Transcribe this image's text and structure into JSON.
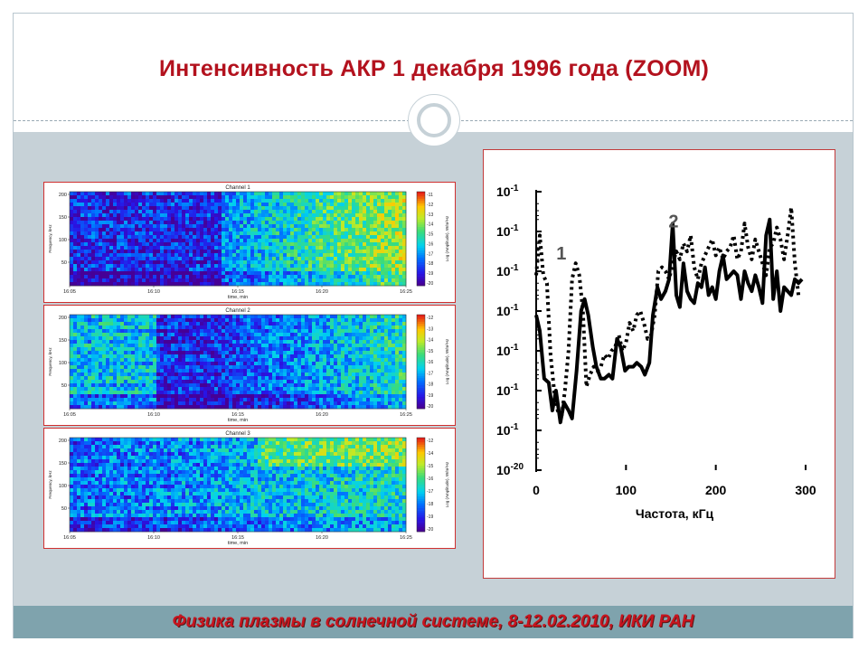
{
  "slide": {
    "title": "Интенсивность АКР 1 декабря 1996 года (ZOOM)",
    "footer": "Физика плазмы в солнечной системе, 8-12.02.2010, ИКИ РАН"
  },
  "spectrograms": [
    {
      "channel_title": "Channel 1",
      "y_label": "Frequency, kHz",
      "y_ticks": [
        "200",
        "150",
        "100",
        "50"
      ],
      "x_label": "time, min",
      "x_ticks": [
        "16:05",
        "16:10",
        "16:15",
        "16:20",
        "16:25"
      ],
      "colorbar_label": "Log (Amplitude), W/m²Hz",
      "colorbar_ticks": [
        "-11",
        "-12",
        "-13",
        "-14",
        "-15",
        "-16",
        "-17",
        "-18",
        "-19",
        "-20"
      ]
    },
    {
      "channel_title": "Channel 2",
      "y_label": "Frequency, kHz",
      "y_ticks": [
        "200",
        "150",
        "100",
        "50"
      ],
      "x_label": "time, min",
      "x_ticks": [
        "16:05",
        "16:10",
        "16:15",
        "16:20",
        "16:25"
      ],
      "colorbar_label": "Log (Amplitude), W/m²Hz",
      "colorbar_ticks": [
        "-12",
        "-13",
        "-14",
        "-15",
        "-16",
        "-17",
        "-18",
        "-19",
        "-20"
      ]
    },
    {
      "channel_title": "Channel 3",
      "y_label": "Frequency, kHz",
      "y_ticks": [
        "200",
        "150",
        "100",
        "50"
      ],
      "x_label": "time, min",
      "x_ticks": [
        "16:05",
        "16:10",
        "16:15",
        "16:20",
        "16:25"
      ],
      "colorbar_label": "Log (Amplitude), W/m²Hz",
      "colorbar_ticks": [
        "-12",
        "-14",
        "-15",
        "-16",
        "-17",
        "-18",
        "-19",
        "-20"
      ]
    }
  ],
  "chart_data": {
    "type": "line",
    "title": "",
    "xlabel": "Частота, кГц",
    "ylabel": "",
    "xlim": [
      0,
      300
    ],
    "x_ticks": [
      "0",
      "100",
      "200",
      "300"
    ],
    "y_ticks": [
      "10",
      "10",
      "10",
      "10",
      "10",
      "10",
      "10",
      "10"
    ],
    "y_tick_exponents": [
      "-1",
      "-1",
      "-1",
      "-1",
      "-1",
      "-1",
      "-1",
      "-20"
    ],
    "grid": false,
    "annotations": [
      {
        "text": "1",
        "x": 28,
        "y": 5.3
      },
      {
        "text": "2",
        "x": 153,
        "y": 6.1
      }
    ],
    "series": [
      {
        "label": "1",
        "style": "solid",
        "x": [
          0,
          4,
          9,
          14,
          18,
          22,
          27,
          31,
          36,
          40,
          45,
          50,
          54,
          58,
          63,
          67,
          72,
          76,
          81,
          85,
          90,
          94,
          99,
          103,
          108,
          112,
          117,
          121,
          126,
          130,
          135,
          139,
          144,
          148,
          152,
          156,
          160,
          164,
          168,
          172,
          176,
          180,
          184,
          188,
          192,
          196,
          200,
          204,
          208,
          212,
          216,
          220,
          224,
          228,
          232,
          236,
          240,
          244,
          248,
          252,
          256,
          260,
          264,
          268,
          272,
          276,
          280,
          284,
          288,
          292,
          296
        ],
        "y": [
          3.9,
          3.5,
          2.3,
          2.2,
          1.5,
          2.0,
          1.2,
          1.7,
          1.5,
          1.3,
          2.5,
          4.0,
          4.3,
          3.9,
          3.1,
          2.6,
          2.3,
          2.3,
          2.4,
          2.3,
          3.3,
          3.1,
          2.5,
          2.6,
          2.6,
          2.7,
          2.6,
          2.4,
          2.7,
          3.9,
          4.6,
          4.3,
          4.5,
          4.8,
          6.2,
          4.4,
          4.1,
          5.2,
          4.5,
          4.3,
          4.2,
          4.7,
          4.6,
          5.1,
          4.4,
          4.6,
          4.3,
          5.0,
          5.4,
          4.8,
          4.9,
          5.0,
          4.9,
          4.3,
          5.0,
          4.7,
          4.5,
          4.9,
          4.6,
          4.2,
          5.9,
          6.3,
          4.3,
          5.0,
          4.0,
          4.6,
          4.5,
          4.4,
          4.8,
          4.7,
          4.8
        ]
      },
      {
        "label": "2",
        "style": "dotted",
        "x": [
          0,
          4,
          8,
          12,
          16,
          20,
          24,
          28,
          32,
          36,
          40,
          44,
          48,
          52,
          56,
          60,
          64,
          68,
          72,
          76,
          80,
          84,
          88,
          92,
          96,
          100,
          104,
          108,
          112,
          116,
          120,
          124,
          128,
          132,
          136,
          140,
          144,
          148,
          152,
          156,
          160,
          164,
          168,
          172,
          176,
          180,
          184,
          188,
          192,
          196,
          200,
          204,
          208,
          212,
          216,
          220,
          224,
          228,
          232,
          236,
          240,
          244,
          248,
          252,
          256,
          260,
          264,
          268,
          272,
          276,
          280,
          284,
          288,
          292
        ],
        "y": [
          4.9,
          5.9,
          4.9,
          4.7,
          2.9,
          2.0,
          1.5,
          1.3,
          2.0,
          3.0,
          4.8,
          5.2,
          4.9,
          4.0,
          2.1,
          2.4,
          2.6,
          2.5,
          2.6,
          2.9,
          2.8,
          3.0,
          3.1,
          3.4,
          3.0,
          3.2,
          3.7,
          3.5,
          3.9,
          4.0,
          3.7,
          3.3,
          3.4,
          3.9,
          5.0,
          5.1,
          5.0,
          4.8,
          5.2,
          5.5,
          5.3,
          5.7,
          5.5,
          5.9,
          5.1,
          4.8,
          5.2,
          5.4,
          5.6,
          5.8,
          5.4,
          5.6,
          5.3,
          5.5,
          5.6,
          5.9,
          5.3,
          5.5,
          6.2,
          5.6,
          5.3,
          5.8,
          5.5,
          5.2,
          4.9,
          5.6,
          5.7,
          6.1,
          5.8,
          5.3,
          5.9,
          6.6,
          5.2,
          4.4
        ]
      }
    ]
  }
}
